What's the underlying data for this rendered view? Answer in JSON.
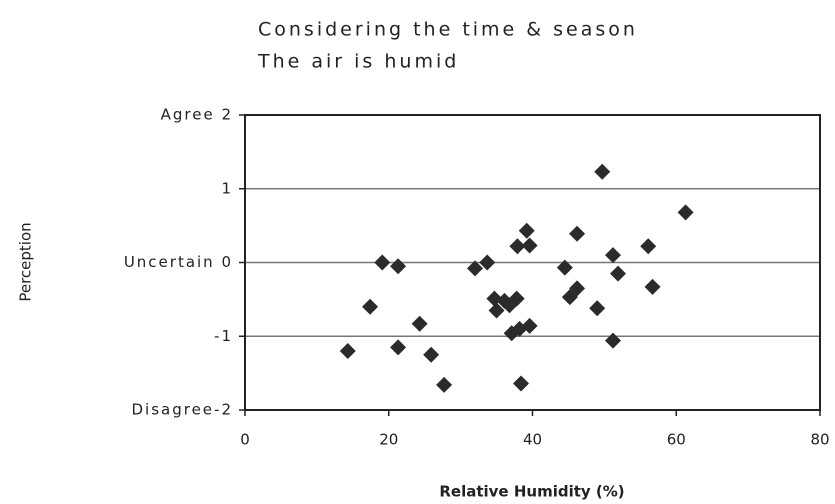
{
  "chart_data": {
    "type": "scatter",
    "title": [
      "Considering the time & season",
      "The air is humid"
    ],
    "xlabel": "Relative Humidity (%)",
    "ylabel": "Perception",
    "x": [
      19.1,
      21.3,
      17.4,
      14.3,
      21.3,
      24.3,
      25.9,
      27.7,
      32,
      33.7,
      34.7,
      35,
      36.1,
      36.8,
      37.8,
      37.1,
      38.2,
      39.6,
      37.9,
      39.2,
      39.6,
      38.4,
      49.7,
      44.5,
      45.2,
      46.2,
      46.2,
      49,
      51.2,
      51.9,
      51.2,
      56.1,
      56.7,
      61.3
    ],
    "values": [
      0,
      -0.05,
      -0.6,
      -1.2,
      -1.15,
      -0.83,
      -1.25,
      -1.66,
      -0.08,
      0,
      -0.49,
      -0.65,
      -0.52,
      -0.58,
      -0.49,
      -0.96,
      -0.9,
      -0.86,
      0.22,
      0.43,
      0.23,
      -1.64,
      1.23,
      -0.07,
      -0.47,
      -0.35,
      0.39,
      -0.62,
      0.1,
      -0.15,
      -1.06,
      0.22,
      -0.33,
      0.68
    ],
    "color": "#2b2b2b",
    "xlim": [
      0,
      80
    ],
    "xticks": [
      0,
      20,
      40,
      60,
      80
    ],
    "ylim": [
      -2,
      2
    ],
    "yticks": [
      {
        "value": -2,
        "label": "Disagree-2"
      },
      -1,
      {
        "value": 0,
        "label": "Uncertain 0"
      },
      1,
      {
        "value": 2,
        "label": "Agree 2"
      }
    ],
    "grid": true
  }
}
